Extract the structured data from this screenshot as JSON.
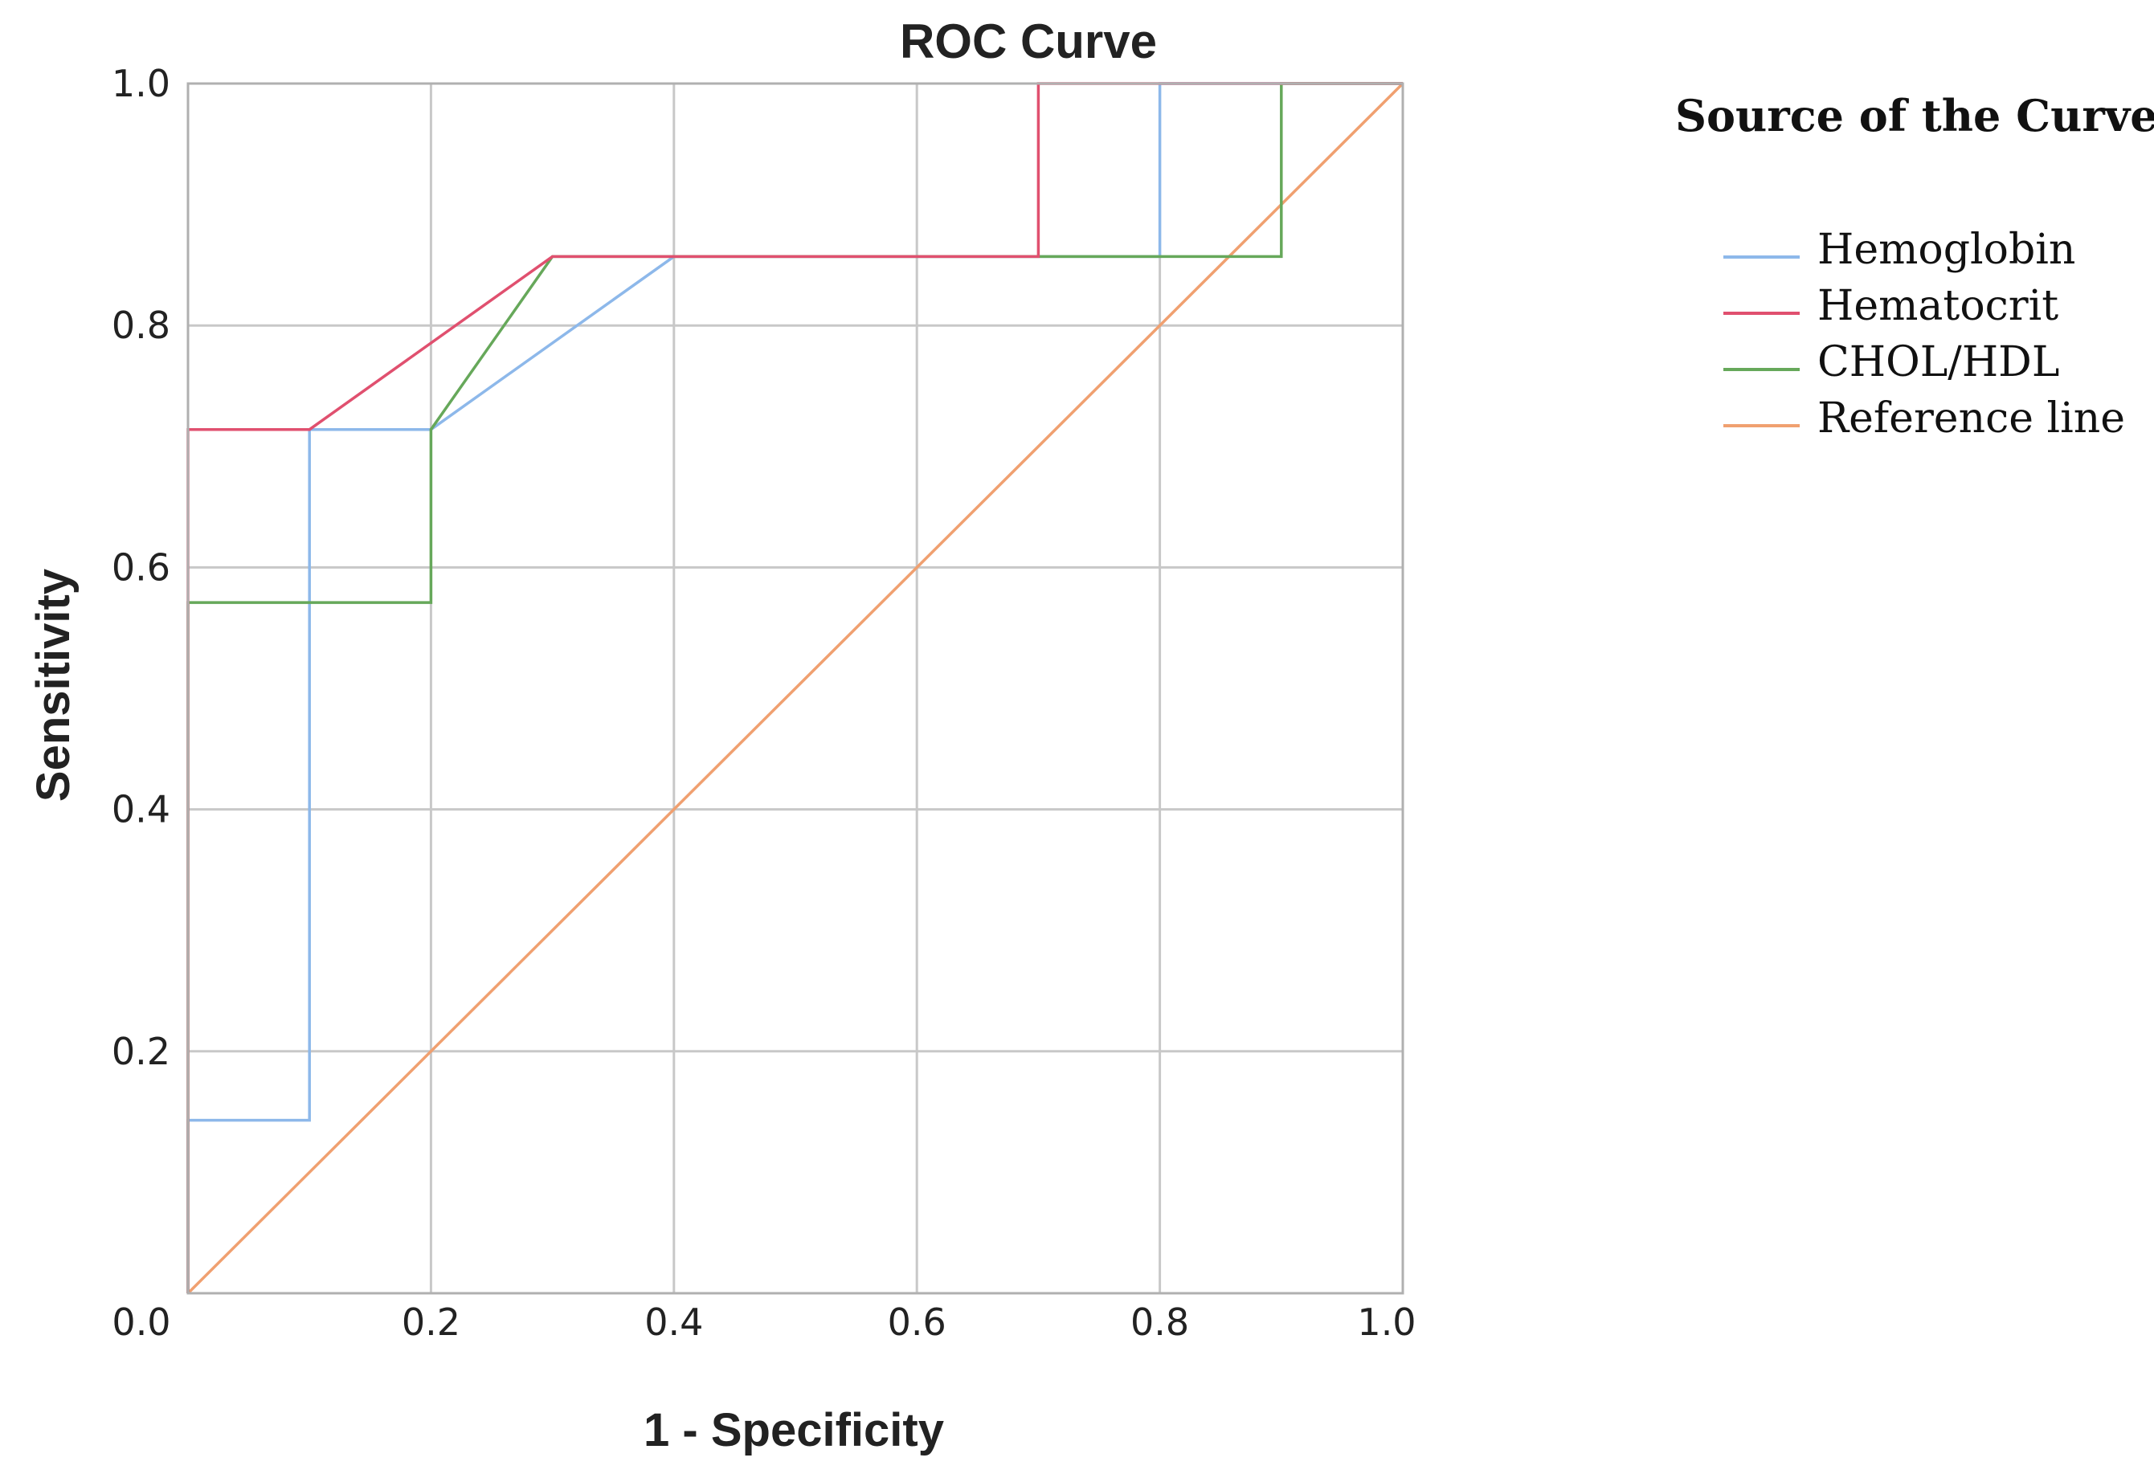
{
  "chart_data": {
    "type": "line",
    "title": "ROC Curve",
    "xlabel": "1 - Specificity",
    "ylabel": "Sensitivity",
    "xlim": [
      0,
      1
    ],
    "ylim": [
      0,
      1
    ],
    "grid": true,
    "x_ticks": [
      0.0,
      0.2,
      0.4,
      0.6,
      0.8,
      1.0
    ],
    "y_ticks": [
      0.0,
      0.2,
      0.4,
      0.6,
      0.8,
      1.0
    ],
    "x_tick_labels": [
      "0.0",
      "0.2",
      "0.4",
      "0.6",
      "0.8",
      "1.0"
    ],
    "y_tick_labels": [
      "0.0",
      "0.2",
      "0.4",
      "0.6",
      "0.8",
      "1.0"
    ],
    "legend": {
      "title": "Source of the Curve",
      "placement": "right"
    },
    "series": [
      {
        "name": "Hemoglobin",
        "color": "#8db8ea",
        "points": [
          [
            0,
            0
          ],
          [
            0,
            0.143
          ],
          [
            0.1,
            0.143
          ],
          [
            0.1,
            0.714
          ],
          [
            0.2,
            0.714
          ],
          [
            0.4,
            0.857
          ],
          [
            0.8,
            0.857
          ],
          [
            0.8,
            1.0
          ],
          [
            1.0,
            1.0
          ]
        ]
      },
      {
        "name": "Hematocrit",
        "color": "#e0506f",
        "points": [
          [
            0,
            0
          ],
          [
            0,
            0.714
          ],
          [
            0.1,
            0.714
          ],
          [
            0.3,
            0.857
          ],
          [
            0.7,
            0.857
          ],
          [
            0.7,
            1.0
          ],
          [
            1.0,
            1.0
          ]
        ]
      },
      {
        "name": "CHOL/HDL",
        "color": "#66a85a",
        "points": [
          [
            0,
            0
          ],
          [
            0,
            0.571
          ],
          [
            0.2,
            0.571
          ],
          [
            0.2,
            0.714
          ],
          [
            0.3,
            0.857
          ],
          [
            0.9,
            0.857
          ],
          [
            0.9,
            1.0
          ],
          [
            1.0,
            1.0
          ]
        ]
      },
      {
        "name": "Reference line",
        "color": "#f0a070",
        "points": [
          [
            0,
            0
          ],
          [
            1,
            1
          ]
        ]
      }
    ]
  }
}
